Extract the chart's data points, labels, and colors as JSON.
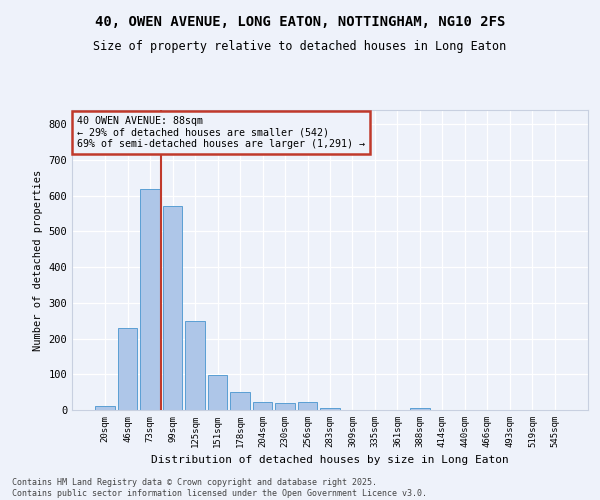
{
  "title1": "40, OWEN AVENUE, LONG EATON, NOTTINGHAM, NG10 2FS",
  "title2": "Size of property relative to detached houses in Long Eaton",
  "xlabel": "Distribution of detached houses by size in Long Eaton",
  "ylabel": "Number of detached properties",
  "categories": [
    "20sqm",
    "46sqm",
    "73sqm",
    "99sqm",
    "125sqm",
    "151sqm",
    "178sqm",
    "204sqm",
    "230sqm",
    "256sqm",
    "283sqm",
    "309sqm",
    "335sqm",
    "361sqm",
    "388sqm",
    "414sqm",
    "440sqm",
    "466sqm",
    "493sqm",
    "519sqm",
    "545sqm"
  ],
  "values": [
    10,
    230,
    620,
    570,
    250,
    98,
    50,
    22,
    20,
    22,
    5,
    1,
    0,
    0,
    7,
    0,
    0,
    0,
    0,
    0,
    0
  ],
  "bar_color": "#aec6e8",
  "bar_edge_color": "#5a9fd4",
  "bar_edge_width": 0.7,
  "vline_color": "#c0392b",
  "vline_x": 2.5,
  "annotation_text": "40 OWEN AVENUE: 88sqm\n← 29% of detached houses are smaller (542)\n69% of semi-detached houses are larger (1,291) →",
  "annotation_box_color": "#c0392b",
  "ylim": [
    0,
    840
  ],
  "yticks": [
    0,
    100,
    200,
    300,
    400,
    500,
    600,
    700,
    800
  ],
  "background_color": "#eef2fa",
  "grid_color": "#ffffff",
  "footer1": "Contains HM Land Registry data © Crown copyright and database right 2025.",
  "footer2": "Contains public sector information licensed under the Open Government Licence v3.0."
}
